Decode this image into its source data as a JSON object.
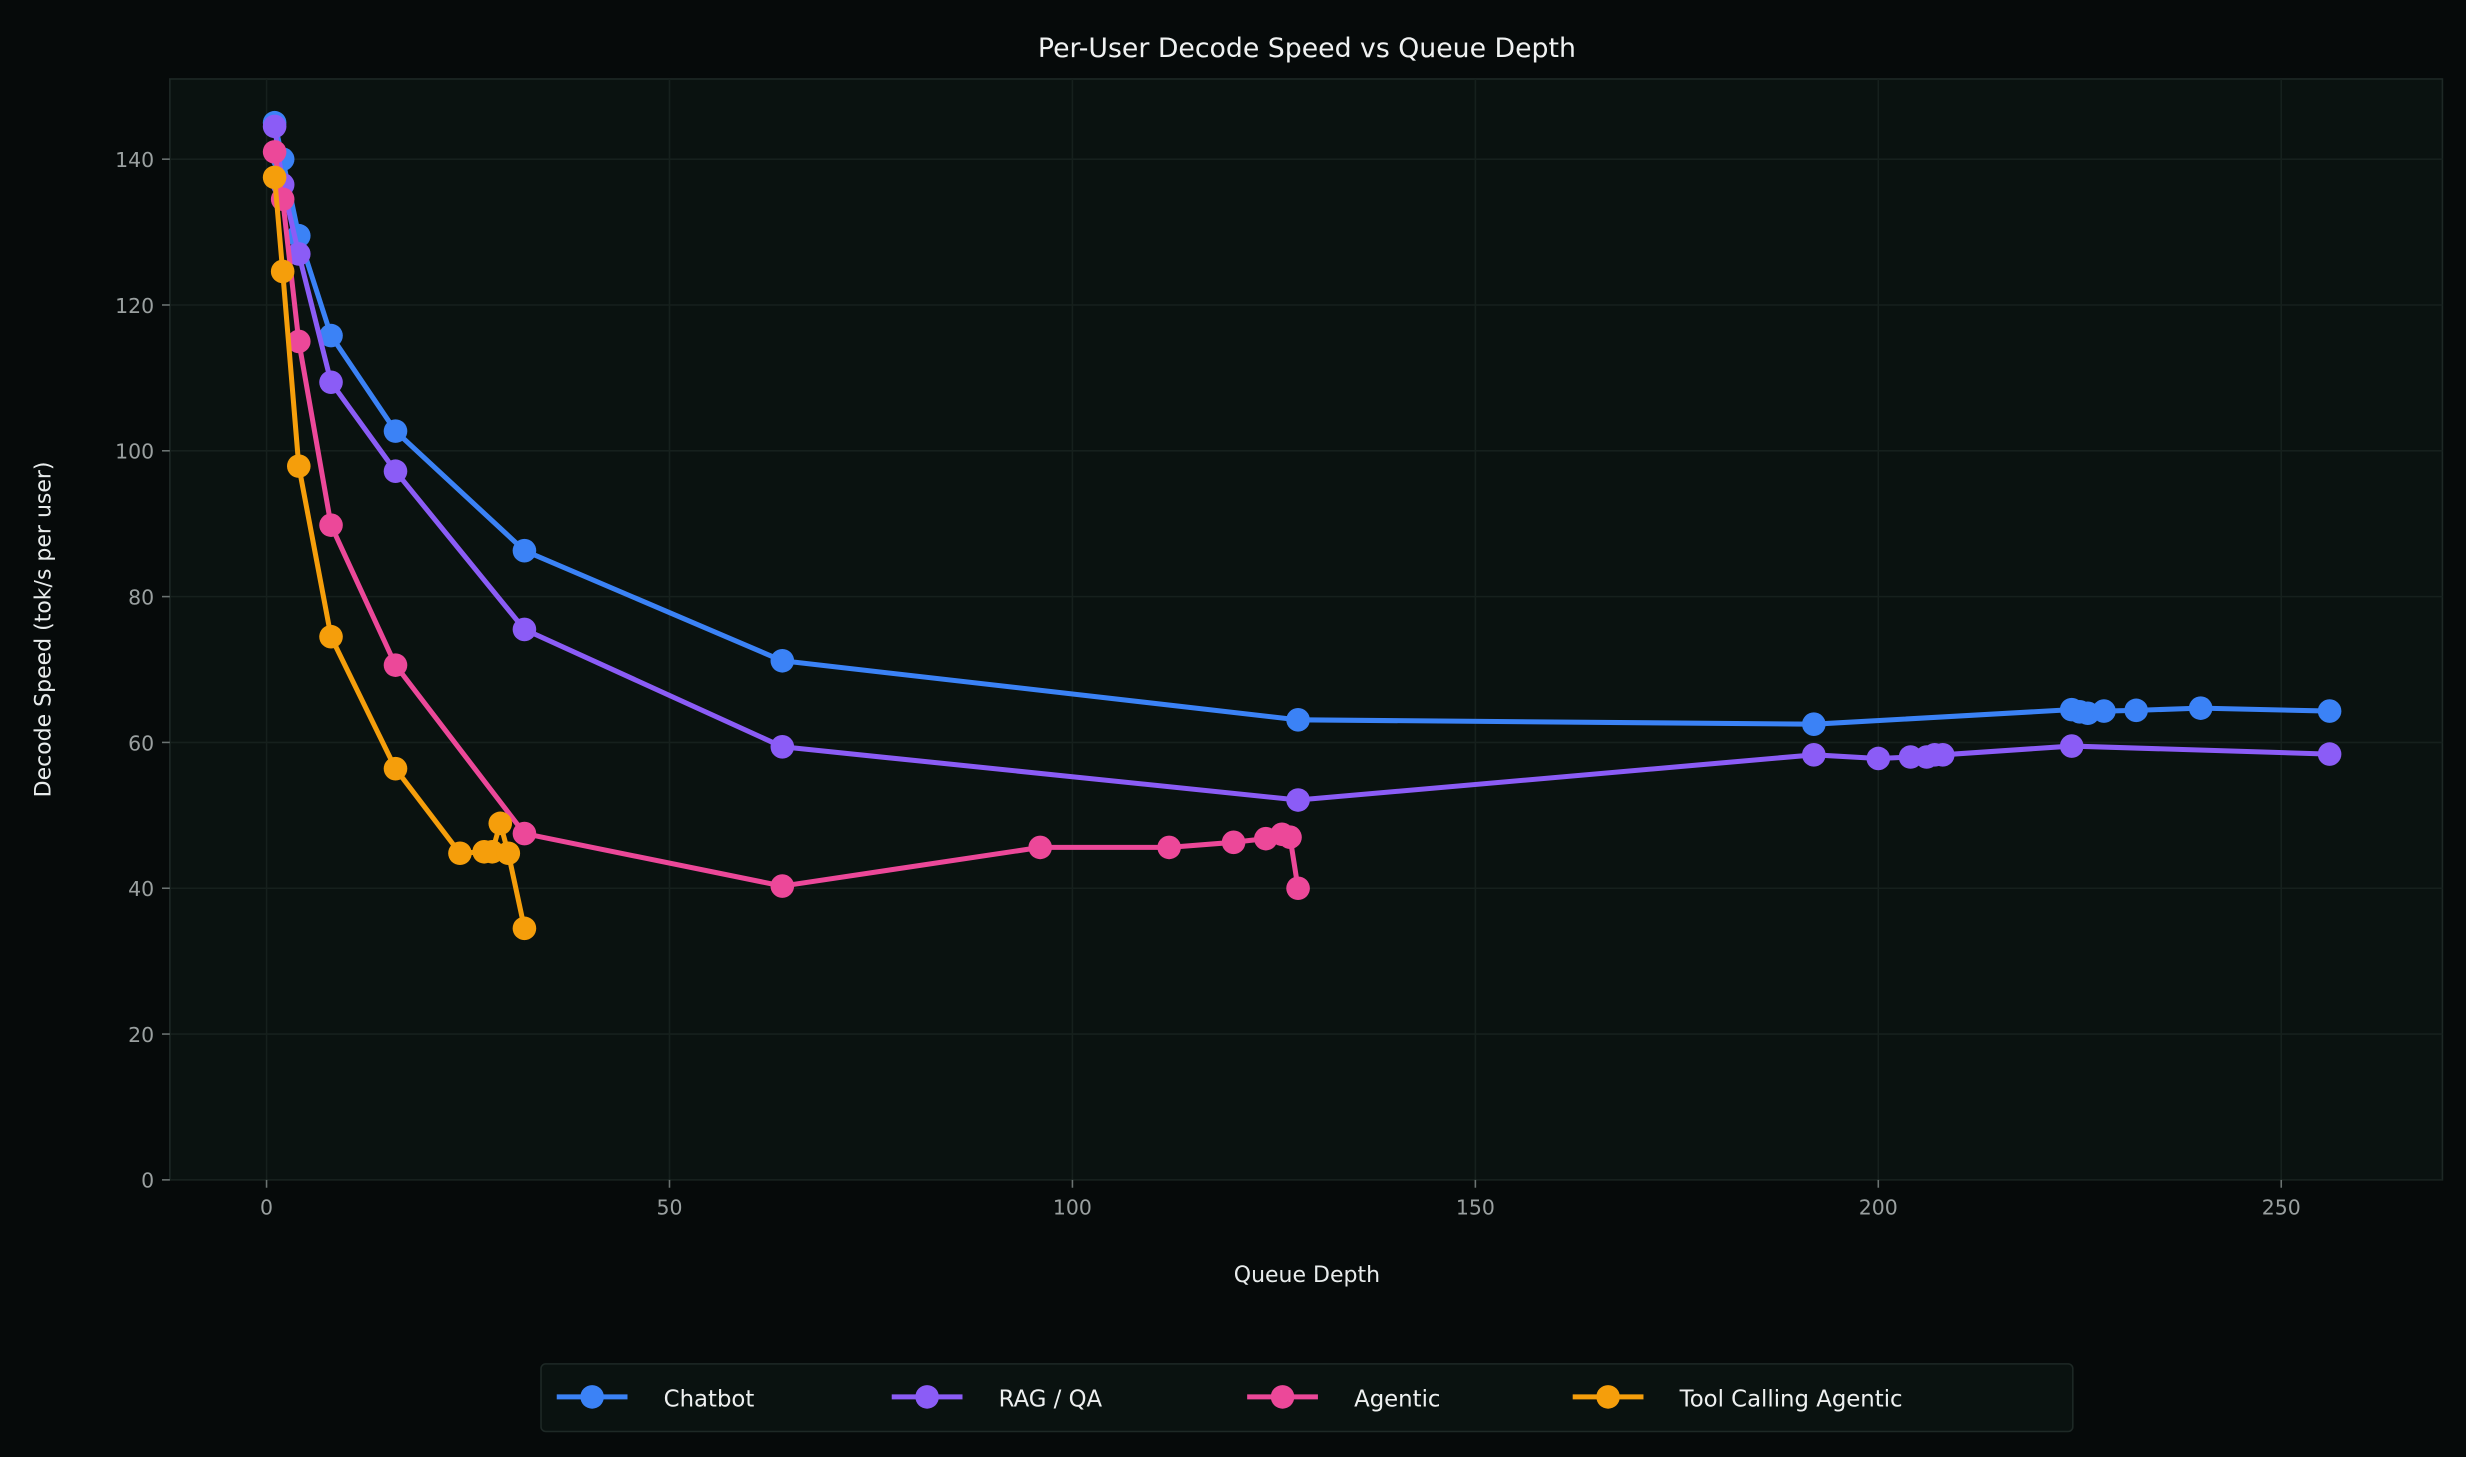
{
  "chart_data": {
    "type": "line",
    "title": "Per-User Decode Speed vs Queue Depth",
    "xlabel": "Queue Depth",
    "ylabel": "Decode Speed (tok/s per user)",
    "xlim": [
      -12,
      270
    ],
    "ylim": [
      0,
      151
    ],
    "xticks": [
      0,
      50,
      100,
      150,
      200,
      250
    ],
    "yticks": [
      0,
      20,
      40,
      60,
      80,
      100,
      120,
      140
    ],
    "grid": true,
    "legend_position": "bottom-center",
    "background_color": "#060a0a",
    "plot_background_color": "#0a1210",
    "series": [
      {
        "name": "Chatbot",
        "color": "#3b82f6",
        "x": [
          1,
          2,
          4,
          8,
          16,
          32,
          64,
          128,
          192,
          224,
          225,
          226,
          228,
          232,
          240,
          256
        ],
        "y": [
          145,
          140,
          129.5,
          115.8,
          102.7,
          86.3,
          71.2,
          63.1,
          62.5,
          64.5,
          64.2,
          64.0,
          64.3,
          64.4,
          64.7,
          64.3
        ]
      },
      {
        "name": "RAG / QA",
        "color": "#8b5cf6",
        "x": [
          1,
          2,
          4,
          8,
          16,
          32,
          64,
          128,
          192,
          200,
          204,
          206,
          207,
          208,
          224,
          256
        ],
        "y": [
          144.5,
          136.5,
          127,
          109.4,
          97.2,
          75.5,
          59.4,
          52.1,
          58.3,
          57.8,
          58,
          58,
          58.3,
          58.3,
          59.5,
          58.4
        ]
      },
      {
        "name": "Agentic",
        "color": "#ec4899",
        "x": [
          1,
          2,
          4,
          8,
          16,
          32,
          64,
          96,
          112,
          120,
          124,
          126,
          127,
          128
        ],
        "y": [
          141,
          134.5,
          115,
          89.8,
          70.6,
          47.5,
          40.3,
          45.6,
          45.6,
          46.3,
          46.8,
          47.4,
          47,
          40
        ]
      },
      {
        "name": "Tool Calling Agentic",
        "color": "#f59e0b",
        "x": [
          1,
          2,
          4,
          8,
          16,
          24,
          27,
          28,
          29,
          30,
          32
        ],
        "y": [
          137.5,
          124.6,
          97.9,
          74.5,
          56.4,
          44.8,
          45,
          45,
          48.9,
          44.8,
          34.5
        ]
      }
    ]
  }
}
